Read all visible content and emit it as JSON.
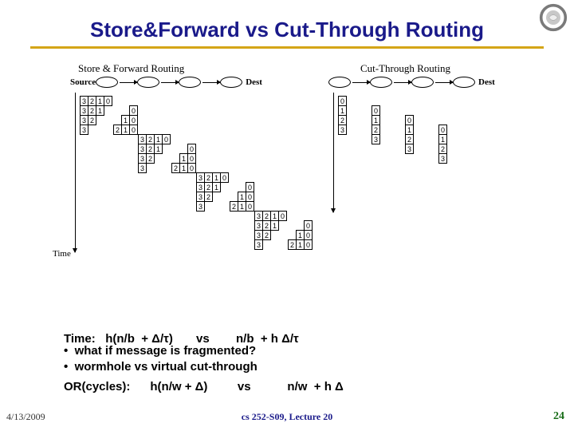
{
  "title": "Store&Forward vs Cut-Through Routing",
  "logo": {
    "ring_color": "#7a7a7a",
    "inner_color": "#b8b8b8"
  },
  "colors": {
    "title": "#1a1a8a",
    "underline": "#d4a517",
    "footer_course": "#1a1a8a",
    "footer_pg": "#1a6e1a"
  },
  "diagram_left": {
    "title": "Store & Forward Routing",
    "src_label": "Source",
    "dest_label": "Dest",
    "hops": 4,
    "time_label": "Time",
    "rows": [
      {
        "indent": 0,
        "cells": [
          "3",
          "2",
          "1",
          "0"
        ]
      },
      {
        "indent": 1,
        "cells": [
          "3",
          "2",
          "1"
        ],
        "sep": true,
        "next": [
          "0"
        ]
      },
      {
        "indent": 2,
        "cells": [
          "3",
          "2"
        ],
        "sep": true,
        "next": [
          "1",
          "0"
        ]
      },
      {
        "indent": 3,
        "cells": [
          "3"
        ],
        "sep": true,
        "next": [
          "2",
          "1",
          "0"
        ]
      },
      {
        "indent": 4,
        "cells": [],
        "sep": true,
        "next": [
          "3",
          "2",
          "1",
          "0"
        ]
      },
      {
        "indent": 5,
        "cells": [],
        "sep": true,
        "next": [
          "3",
          "2",
          "1"
        ],
        "sep2": true,
        "next2": [
          "0"
        ]
      },
      {
        "indent": 6,
        "cells": [],
        "sep": true,
        "next": [
          "3",
          "2"
        ],
        "sep2": true,
        "next2": [
          "1",
          "0"
        ]
      },
      {
        "indent": 7,
        "cells": [],
        "sep": true,
        "next": [
          "3"
        ],
        "sep2": true,
        "next2": [
          "2",
          "1",
          "0"
        ]
      }
    ]
  },
  "diagram_right": {
    "title": "Cut-Through Routing",
    "src_label": "",
    "dest_label": "Dest",
    "hops": 4,
    "time_label": "",
    "rows": []
  },
  "formula_line1_a": "Time:   h(n/b  + ",
  "formula_line1_b": ")       vs        n/b  + h ",
  "formula_line2_a": "OR(cycles):      h(n/w + ",
  "formula_line2_b": ")         vs           n/w  + h ",
  "delta": "Δ",
  "tau": "τ",
  "bullets": [
    "what if message is fragmented?",
    "wormhole vs virtual cut-through"
  ],
  "footer": {
    "date": "4/13/2009",
    "course": "cs 252-S09, Lecture 20",
    "page": "24"
  }
}
